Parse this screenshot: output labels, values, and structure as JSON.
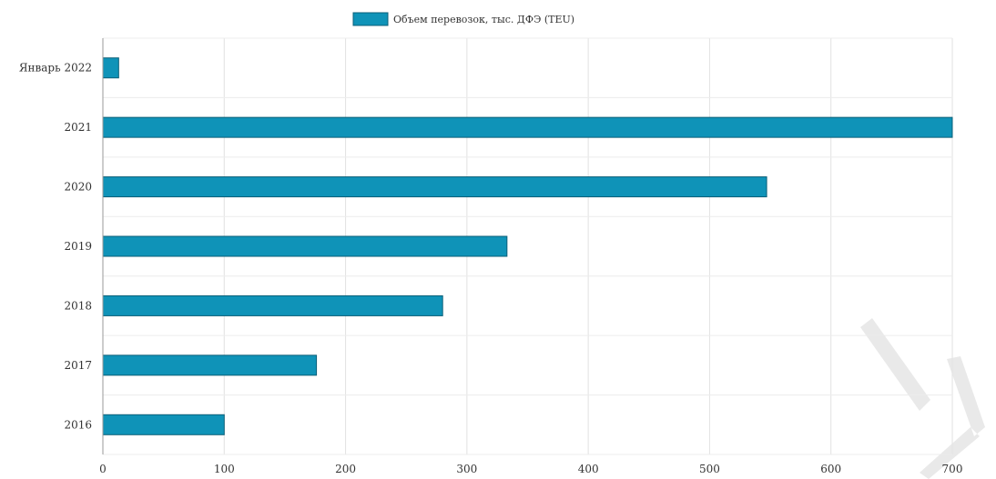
{
  "chart_data": {
    "type": "bar",
    "orientation": "horizontal",
    "categories": [
      "Январь 2022",
      "2021",
      "2020",
      "2019",
      "2018",
      "2017",
      "2016"
    ],
    "series": [
      {
        "name": "Объем перевозок, тыс. ДФЭ (TEU)",
        "values": [
          13,
          700,
          547,
          333,
          280,
          176,
          100
        ],
        "color": "#0f93b8"
      }
    ],
    "xlim": [
      0,
      700
    ],
    "xticks": [
      0,
      100,
      200,
      300,
      400,
      500,
      600,
      700
    ],
    "grid": true,
    "legend_position": "top-center"
  },
  "watermark": {
    "text": "БУ",
    "color": "#e8e8e8"
  }
}
